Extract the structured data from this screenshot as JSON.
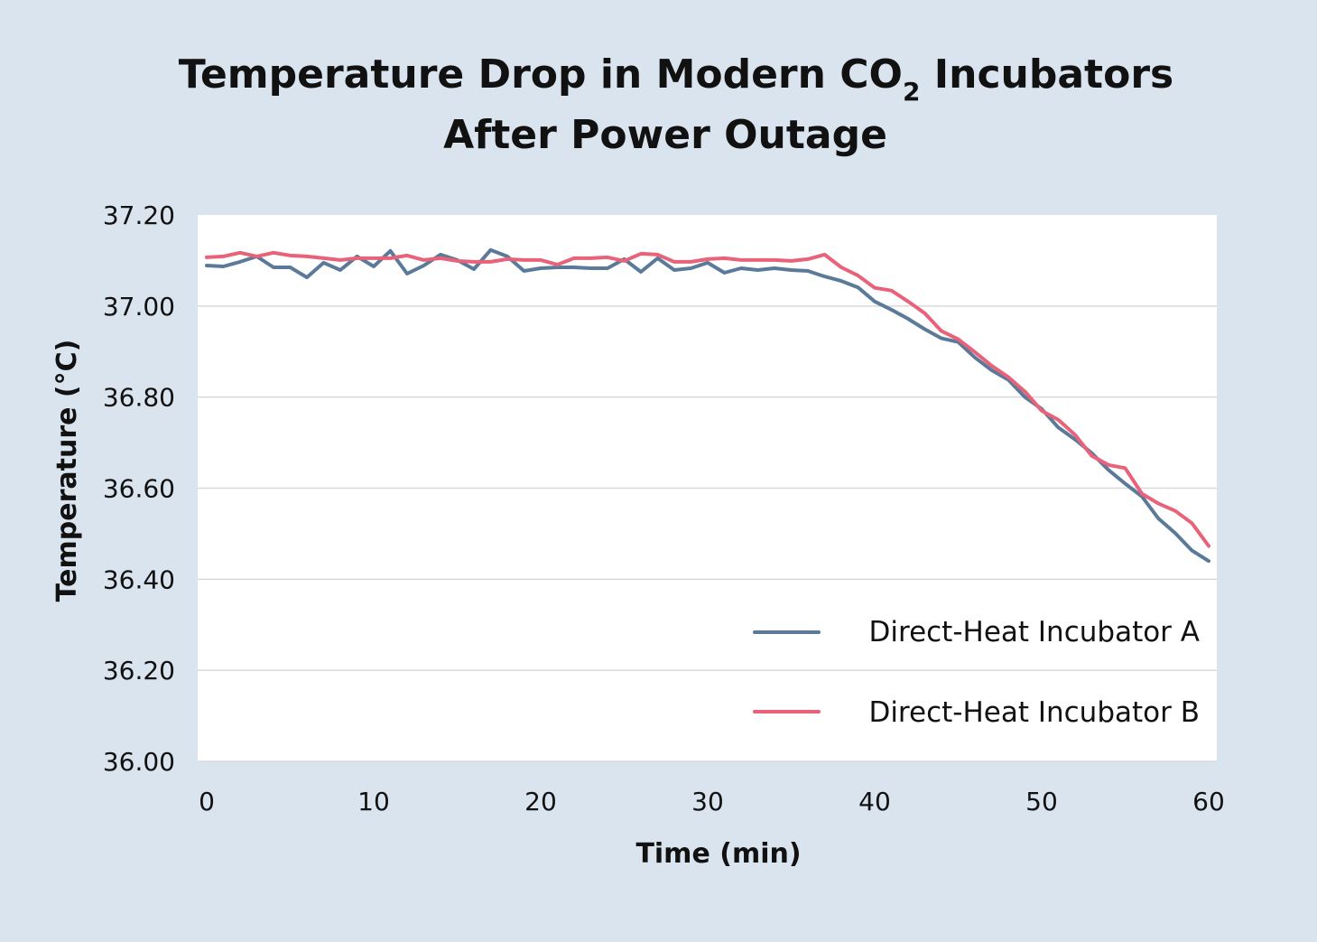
{
  "chart_data": {
    "type": "line",
    "title": {
      "line1_prefix": "Temperature Drop in Modern CO",
      "line1_subscript": "2",
      "line1_suffix": " Incubators",
      "line2": "After Power Outage"
    },
    "xlabel": "Time (min)",
    "ylabel": "Temperature (°C)",
    "xlim": [
      0,
      60
    ],
    "ylim": [
      36.0,
      37.2
    ],
    "xticks": [
      0,
      10,
      20,
      30,
      40,
      50,
      60
    ],
    "xtick_labels": [
      "0",
      "10",
      "20",
      "30",
      "40",
      "50",
      "60"
    ],
    "yticks": [
      36.0,
      36.2,
      36.4,
      36.6,
      36.8,
      37.0,
      37.2
    ],
    "ytick_labels": [
      "36.00",
      "36.20",
      "36.40",
      "36.60",
      "36.80",
      "37.00",
      "37.20"
    ],
    "grid": "horizontal",
    "legend_position": "bottom-right",
    "x": [
      0,
      1,
      2,
      3,
      4,
      5,
      6,
      7,
      8,
      9,
      10,
      11,
      12,
      13,
      14,
      15,
      16,
      17,
      18,
      19,
      20,
      21,
      22,
      23,
      24,
      25,
      26,
      27,
      28,
      29,
      30,
      31,
      32,
      33,
      34,
      35,
      36,
      37,
      38,
      39,
      40,
      41,
      42,
      43,
      44,
      45,
      46,
      47,
      48,
      49,
      50,
      51,
      52,
      53,
      54,
      55,
      56,
      57,
      58,
      59,
      60
    ],
    "series": [
      {
        "name": "Direct-Heat Incubator A",
        "color": "#5b7a99",
        "values": [
          37.089,
          37.087,
          37.097,
          37.109,
          37.085,
          37.085,
          37.063,
          37.095,
          37.079,
          37.109,
          37.087,
          37.121,
          37.071,
          37.089,
          37.113,
          37.101,
          37.081,
          37.123,
          37.109,
          37.077,
          37.083,
          37.085,
          37.085,
          37.083,
          37.083,
          37.103,
          37.075,
          37.105,
          37.079,
          37.083,
          37.095,
          37.073,
          37.083,
          37.079,
          37.083,
          37.079,
          37.077,
          37.065,
          37.055,
          37.041,
          37.01,
          36.992,
          36.972,
          36.949,
          36.929,
          36.921,
          36.887,
          36.859,
          36.838,
          36.8,
          36.774,
          36.733,
          36.707,
          36.677,
          36.64,
          36.61,
          36.582,
          36.533,
          36.501,
          36.463,
          36.44
        ]
      },
      {
        "name": "Direct-Heat Incubator B",
        "color": "#e8637a",
        "values": [
          37.107,
          37.109,
          37.117,
          37.109,
          37.117,
          37.111,
          37.109,
          37.105,
          37.101,
          37.105,
          37.105,
          37.105,
          37.111,
          37.101,
          37.105,
          37.099,
          37.097,
          37.097,
          37.103,
          37.101,
          37.101,
          37.091,
          37.105,
          37.105,
          37.107,
          37.099,
          37.115,
          37.113,
          37.097,
          37.097,
          37.103,
          37.105,
          37.101,
          37.101,
          37.101,
          37.099,
          37.103,
          37.113,
          37.085,
          37.067,
          37.04,
          37.034,
          37.01,
          36.984,
          36.945,
          36.927,
          36.899,
          36.869,
          36.844,
          36.812,
          36.77,
          36.75,
          36.717,
          36.671,
          36.651,
          36.644,
          36.588,
          36.566,
          36.55,
          36.523,
          36.473
        ]
      }
    ]
  },
  "colors": {
    "background": "#dae4ee",
    "plot_background": "#ffffff",
    "gridline": "#d9d9d9"
  }
}
